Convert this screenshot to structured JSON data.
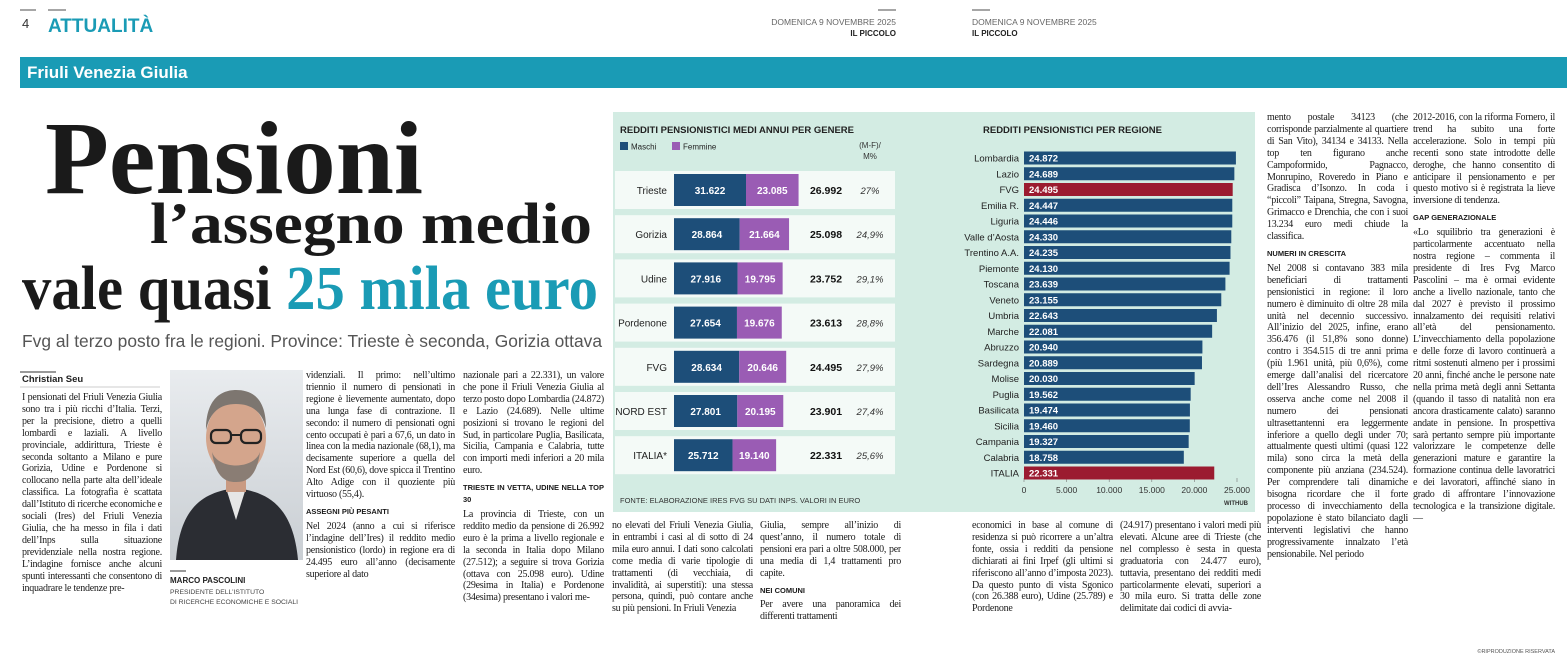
{
  "header": {
    "page_number": "4",
    "section": "ATTUALITÀ",
    "date_left": "DOMENICA 9 NOVEMBRE 2025",
    "paper_left": "IL PICCOLO",
    "date_right": "DOMENICA 9 NOVEMBRE 2025",
    "paper_right": "IL PICCOLO",
    "band": "Friuli Venezia Giulia"
  },
  "headline": {
    "line1": "Pensioni",
    "line2": "l’assegno medio",
    "line3a": "vale quasi ",
    "line3b": "25 mila euro",
    "subtitle": "Fvg al terzo posto fra le regioni. Province: Trieste è seconda, Gorizia ottava"
  },
  "author": "Christian Seu",
  "photo_caption": {
    "name": "MARCO PASCOLINI",
    "role1": "PRESIDENTE DELL’ISTITUTO",
    "role2": "DI RICERCHE ECONOMICHE E SOCIALI"
  },
  "columns": [
    [
      {
        "p": "I pensionati del Friuli Venezia Giulia sono tra i più ricchi d’Italia. Terzi, per la precisione, dietro a quelli lombardi e laziali. A livello provinciale, addirittura, Trieste è seconda soltanto a Milano e pure Gorizia, Udine e Pordenone si collocano nella parte alta dell’ideale classifica. La fotografia è scattata dall’Istituto di ricerche economiche e sociali (Ires) del Friuli Venezia Giulia, che ha messo in fila i dati dell’Inps sulla situazione previdenziale nella nostra regione. L’indagine fornisce anche alcuni spunti interessanti che consentono di inquadrare le tendenze pre-"
      }
    ],
    [
      {
        "p": "videnziali. Il primo: nell’ultimo triennio il numero di pensionati in regione è lievemente aumentato, dopo una lunga fase di contrazione. Il secondo: il numero di pensionati ogni cento occupati è pari a 67,6, un dato in linea con la media nazionale (68,1), ma decisamente superiore a quella del Nord Est (60,6), dove spicca il Trentino Alto Adige con il quoziente più virtuoso (55,4)."
      },
      {
        "h": "ASSEGNI PIÙ PESANTI"
      },
      {
        "p": "Nel 2024 (anno a cui si riferisce l’indagine dell’Ires) il reddito medio pensionistico (lordo) in regione era di 24.495 euro all’anno (decisamente superiore al dato"
      }
    ],
    [
      {
        "p": "nazionale pari a 22.331), un valore che pone il Friuli Venezia Giulia al terzo posto dopo Lombardia (24.872) e Lazio (24.689). Nelle ultime posizioni si trovano le regioni del Sud, in particolare Puglia, Basilicata, Sicilia, Campania e Calabria, tutte con importi medi inferiori a 20 mila euro."
      },
      {
        "h": "TRIESTE IN VETTA, UDINE NELLA TOP 30"
      },
      {
        "p": "La provincia di Trieste, con un reddito medio da pensione di 26.992 euro è la prima a livello regionale e la seconda in Italia dopo Milano (27.512); a seguire si trova Gorizia (ottava con 25.098 euro). Udine (29esima in Italia) e Pordenone (34esima) presentano i valori me-"
      }
    ],
    [
      {
        "p": "no elevati del Friuli Venezia Giulia, in entrambi i casi al di sotto di 24 mila euro annui. I dati sono calcolati come media di varie tipologie di trattamenti (di vecchiaia, di invalidità, ai superstiti): una stessa persona, quindi, può contare anche su più pensioni. In Friuli Venezia"
      }
    ],
    [
      {
        "p": "Giulia, sempre all’inizio di quest’anno, il numero totale di pensioni era pari a oltre 508.000, per una media di 1,4 trattamenti pro capite."
      },
      {
        "h": "NEI COMUNI"
      },
      {
        "p": "Per avere una panoramica dei differenti trattamenti"
      }
    ],
    [
      {
        "p": "economici in base al comune di residenza si può ricorrere a un’altra fonte, ossia i redditi da pensione dichiarati ai fini Irpef (gli ultimi si riferiscono all’anno d’imposta 2023). Da questo punto di vista Sgonico (con 26.388 euro), Udine (25.789) e Pordenone"
      }
    ],
    [
      {
        "p": "(24.917) presentano i valori medi più elevati. Alcune aree di Trieste (che nel complesso è sesta in questa graduatoria con 24.477 euro), tuttavia, presentano dei redditi medi particolarmente elevati, superiori a 30 mila euro. Si tratta delle zone delimitate dai codici di avvia-"
      }
    ],
    [
      {
        "p": "mento postale 34123 (che corrisponde parzialmente al quartiere di San Vito), 34134 e 34133. Nella top ten figurano anche Campoformido, Pagnacco, Monrupino, Roveredo in Piano e Gradisca d’Isonzo. In coda i “piccoli” Taipana, Stregna, Savogna, Grimacco e Drenchia, che con i suoi 13.234 euro medi chiude la classifica."
      },
      {
        "h": "NUMERI IN CRESCITA"
      },
      {
        "p": "Nel 2008 si contavano 383 mila beneficiari di trattamenti pensionistici in regione: il loro numero è diminuito di oltre 28 mila unità nel decennio successivo. All’inizio del 2025, infine, erano 356.476 (il 51,8% sono donne) contro i 354.515 di tre anni prima (più 1.961 unità, più 0,6%), come emerge dall’analisi del ricercatore dell’Ires Alessandro Russo, che osserva anche come nel 2008 il numero dei pensionati ultrasettantenni era leggermente inferiore a quello degli under 70; attualmente questi ultimi (quasi 122 mila) sono circa la metà della componente più anziana (234.524). Per comprendere tali dinamiche bisogna ricordare che il forte processo di invecchiamento della popolazione è stato bilanciato dagli interventi legislativi che hanno progressivamente innalzato l’età pensionabile. Nel periodo"
      }
    ],
    [
      {
        "p": "2012-2016, con la riforma Fornero, il trend ha subito una forte accelerazione. Solo in tempi più recenti sono state introdotte delle deroghe, che hanno consentito di anticipare il pensionamento e per questo motivo si è registrata la lieve inversione di tendenza."
      },
      {
        "h": "GAP GENERAZIONALE"
      },
      {
        "p": "«Lo squilibrio tra generazioni è particolarmente accentuato nella nostra regione – commenta il presidente di Ires Fvg Marco Pascolini – ma è ormai evidente anche a livello nazionale, tanto che dal 2027 è previsto il prossimo innalzamento dei requisiti relativi all’età del pensionamento. L’invecchiamento della popolazione e delle forze di lavoro continuerà a ritmi sostenuti almeno per i prossimi 20 anni, finché anche le persone nate nella prima metà degli anni Settanta (quando il tasso di natalità non era ancora drasticamente calato) saranno andate in pensione. In prospettiva sarà pertanto sempre più importante valorizzare le competenze delle generazioni mature e garantire la formazione continua delle lavoratrici e dei lavoratori, affinché siano in grado di affrontare l’innovazione tecnologica e la transizione digitale. —"
      }
    ]
  ],
  "copyright": "©RIPRODUZIONE RISERVATA",
  "chart_gender": {
    "type": "bar",
    "title": "REDDITI PENSIONISTICI MEDI ANNUI PER GENERE",
    "categories": [
      "Trieste",
      "Gorizia",
      "Udine",
      "Pordenone",
      "FVG",
      "NORD EST",
      "ITALIA*"
    ],
    "series": [
      {
        "name": "Maschi",
        "color": "#1d4e79",
        "values": [
          31622,
          28864,
          27916,
          27654,
          28634,
          27801,
          25712
        ],
        "value_labels": [
          "31.622",
          "28.864",
          "27.916",
          "27.654",
          "28.634",
          "27.801",
          "25.712"
        ]
      },
      {
        "name": "Femmine",
        "color": "#9a5cb4",
        "values": [
          23085,
          21664,
          19795,
          19676,
          20646,
          20195,
          19140
        ],
        "value_labels": [
          "23.085",
          "21.664",
          "19.795",
          "19.676",
          "20.646",
          "20.195",
          "19.140"
        ]
      }
    ],
    "totals": {
      "values": [
        26992,
        25098,
        23752,
        23613,
        24495,
        23901,
        22331
      ],
      "value_labels": [
        "26.992",
        "25.098",
        "23.752",
        "23.613",
        "24.495",
        "23.901",
        "22.331"
      ]
    },
    "diff_header": [
      "(M-F)/",
      "M%"
    ],
    "diff": {
      "values": [
        27,
        24.9,
        29.1,
        28.8,
        27.9,
        27.4,
        25.6
      ],
      "value_labels": [
        "27%",
        "24,9%",
        "29,1%",
        "28,8%",
        "27,9%",
        "27,4%",
        "25,6%"
      ]
    },
    "source": "FONTE: ELABORAZIONE IRES FVG SU DATI INPS. VALORI IN EURO"
  },
  "chart_region": {
    "type": "bar",
    "orientation": "horizontal",
    "title": "REDDITI PENSIONISTICI PER REGIONE",
    "categories": [
      "Lombardia",
      "Lazio",
      "FVG",
      "Emilia R.",
      "Liguria",
      "Valle d’Aosta",
      "Trentino A.A.",
      "Piemonte",
      "Toscana",
      "Veneto",
      "Umbria",
      "Marche",
      "Abruzzo",
      "Sardegna",
      "Molise",
      "Puglia",
      "Basilicata",
      "Sicilia",
      "Campania",
      "Calabria",
      "ITALIA"
    ],
    "values": [
      24872,
      24689,
      24495,
      24447,
      24446,
      24330,
      24235,
      24130,
      23639,
      23155,
      22643,
      22081,
      20940,
      20889,
      20030,
      19562,
      19474,
      19460,
      19327,
      18758,
      22331
    ],
    "value_labels": [
      "24.872",
      "24.689",
      "24.495",
      "24.447",
      "24.446",
      "24.330",
      "24.235",
      "24.130",
      "23.639",
      "23.155",
      "22.643",
      "22.081",
      "20.940",
      "20.889",
      "20.030",
      "19.562",
      "19.474",
      "19.460",
      "19.327",
      "18.758",
      "22.331"
    ],
    "colors": [
      "#1d4e79",
      "#1d4e79",
      "#9b1b30",
      "#1d4e79",
      "#1d4e79",
      "#1d4e79",
      "#1d4e79",
      "#1d4e79",
      "#1d4e79",
      "#1d4e79",
      "#1d4e79",
      "#1d4e79",
      "#1d4e79",
      "#1d4e79",
      "#1d4e79",
      "#1d4e79",
      "#1d4e79",
      "#1d4e79",
      "#1d4e79",
      "#1d4e79",
      "#9b1b30"
    ],
    "xlim": [
      0,
      25000
    ],
    "xticks": [
      0,
      {
        "value": 5000,
        "label": "5.000"
      },
      {
        "value": 10000,
        "label": "10.000"
      },
      {
        "value": 15000,
        "label": "15.000"
      },
      {
        "value": 20000,
        "label": "20.000"
      },
      {
        "value": 25000,
        "label": "25.000"
      }
    ],
    "credit": "WITHUB"
  }
}
